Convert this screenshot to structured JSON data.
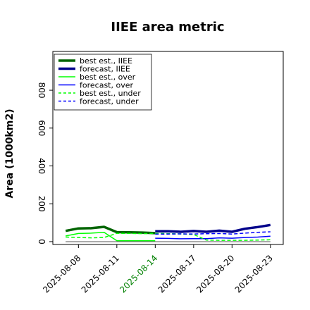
{
  "chart_data": {
    "type": "line",
    "title": "IIEE area metric",
    "xlabel": "",
    "ylabel": "Area (1000km2)",
    "ylim": [
      -15,
      1005
    ],
    "xlim": [
      "2025-08-06",
      "2025-08-24"
    ],
    "yticks": [
      0,
      200,
      400,
      600,
      800
    ],
    "xticks": [
      "2025-08-08",
      "2025-08-11",
      "2025-08-14",
      "2025-08-17",
      "2025-08-20",
      "2025-08-23"
    ],
    "xtick_colors": [
      "#000000",
      "#000000",
      "#008000",
      "#000000",
      "#000000",
      "#000000"
    ],
    "grid": false,
    "legend_position": "upper left",
    "x": [
      "2025-08-07",
      "2025-08-08",
      "2025-08-09",
      "2025-08-10",
      "2025-08-11",
      "2025-08-12",
      "2025-08-13",
      "2025-08-14",
      "2025-08-15",
      "2025-08-16",
      "2025-08-17",
      "2025-08-18",
      "2025-08-19",
      "2025-08-20",
      "2025-08-21",
      "2025-08-22",
      "2025-08-23"
    ],
    "series": [
      {
        "name": "best est., IIEE",
        "color": "#006400",
        "style": "solid",
        "width": "thick",
        "values": [
          57,
          70,
          71,
          78,
          50,
          49,
          48,
          45,
          null,
          null,
          null,
          null,
          null,
          null,
          null,
          null,
          null
        ]
      },
      {
        "name": "forecast, IIEE",
        "color": "#00008b",
        "style": "solid",
        "width": "thick",
        "values": [
          null,
          null,
          null,
          null,
          null,
          null,
          null,
          55,
          55,
          52,
          56,
          52,
          58,
          52,
          68,
          77,
          88
        ]
      },
      {
        "name": "best est., over",
        "color": "#00ff00",
        "style": "solid",
        "width": "thin",
        "values": [
          30,
          43,
          45,
          49,
          5,
          5,
          5,
          5,
          null,
          null,
          null,
          null,
          null,
          null,
          null,
          null,
          null
        ]
      },
      {
        "name": "forecast, over",
        "color": "#0000ff",
        "style": "solid",
        "width": "thin",
        "values": [
          null,
          null,
          null,
          null,
          null,
          null,
          null,
          18,
          17,
          15,
          16,
          16,
          20,
          18,
          22,
          24,
          29
        ]
      },
      {
        "name": "best est., under",
        "color": "#00ff00",
        "style": "dashed",
        "width": "thin",
        "values": [
          24,
          22,
          20,
          22,
          44,
          44,
          42,
          44,
          42,
          41,
          38,
          8,
          7,
          7,
          7,
          8,
          10
        ]
      },
      {
        "name": "forecast, under",
        "color": "#0000ff",
        "style": "dashed",
        "width": "thin",
        "values": [
          null,
          null,
          null,
          null,
          null,
          null,
          null,
          40,
          40,
          41,
          40,
          42,
          43,
          40,
          45,
          49,
          52
        ]
      }
    ]
  }
}
